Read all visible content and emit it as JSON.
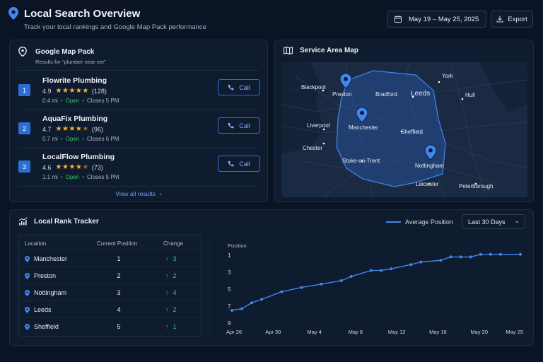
{
  "header": {
    "title": "Local Search Overview",
    "subtitle": "Track your local rankings and Google Map Pack performance",
    "date_range": "May 19 – May 25, 2025",
    "export_label": "Export"
  },
  "map_pack": {
    "title": "Google Map Pack",
    "subtitle": "Results for “plumber near me”",
    "call_label": "Call",
    "view_all_label": "View all results",
    "businesses": [
      {
        "rank": "1",
        "name": "Flowrite Plumbing",
        "rating": "4.9",
        "stars": 5,
        "reviews": "(128)",
        "distance": "0.4 mi",
        "status": "Open",
        "closes": "Closes 5 PM"
      },
      {
        "rank": "2",
        "name": "AquaFix Plumbing",
        "rating": "4.7",
        "stars": 4.5,
        "reviews": "(96)",
        "distance": "0.7 mi",
        "status": "Open",
        "closes": "Closes 6 PM"
      },
      {
        "rank": "3",
        "name": "LocalFlow Plumbing",
        "rating": "4.6",
        "stars": 4.5,
        "reviews": "(73)",
        "distance": "1.1 mi",
        "status": "Open",
        "closes": "Closes 5 PM"
      }
    ]
  },
  "service_map": {
    "title": "Service Area Map",
    "cities": [
      "York",
      "Blackpool",
      "Preston",
      "Bradford",
      "Leeds",
      "Hull",
      "Liverpool",
      "Manchester",
      "Sheffield",
      "Chester",
      "Stoke-on-Trent",
      "Nottingham",
      "Leicester",
      "Peterborough"
    ],
    "pinned_cities": [
      "Preston",
      "Manchester",
      "Nottingham"
    ]
  },
  "rank_tracker": {
    "title": "Local Rank Tracker",
    "legend_label": "Average Position",
    "period": "Last 30 Days",
    "columns": [
      "Location",
      "Current Position",
      "Change"
    ],
    "rows": [
      {
        "location": "Manchester",
        "position": "1",
        "change": "3"
      },
      {
        "location": "Preston",
        "position": "2",
        "change": "2"
      },
      {
        "location": "Nottingham",
        "position": "3",
        "change": "4"
      },
      {
        "location": "Leeds",
        "position": "4",
        "change": "2"
      },
      {
        "location": "Sheffield",
        "position": "5",
        "change": "1"
      }
    ]
  },
  "colors": {
    "accent": "#2b6fd6",
    "line": "#3f86ee",
    "positive": "#3fbf6f",
    "star": "#f2b233"
  },
  "chart_data": {
    "type": "line",
    "ylabel": "Position",
    "y_reversed": true,
    "ylim": [
      1,
      9
    ],
    "y_ticks": [
      1,
      3,
      5,
      7,
      9
    ],
    "x_ticks": [
      "Apr 26",
      "Apr 30",
      "May 4",
      "May 8",
      "May 12",
      "May 16",
      "May 20",
      "May 25"
    ],
    "series": [
      {
        "name": "Average Position",
        "x": [
          "2025-04-26",
          "2025-04-27",
          "2025-04-28",
          "2025-04-29",
          "2025-05-01",
          "2025-05-03",
          "2025-05-05",
          "2025-05-07",
          "2025-05-08",
          "2025-05-10",
          "2025-05-11",
          "2025-05-12",
          "2025-05-14",
          "2025-05-15",
          "2025-05-17",
          "2025-05-18",
          "2025-05-19",
          "2025-05-20",
          "2025-05-21",
          "2025-05-22",
          "2025-05-23",
          "2025-05-25"
        ],
        "values": [
          7.5,
          7.3,
          6.6,
          6.2,
          5.3,
          4.8,
          4.4,
          4.0,
          3.5,
          2.8,
          2.8,
          2.6,
          2.1,
          1.8,
          1.6,
          1.2,
          1.2,
          1.2,
          0.9,
          0.9,
          0.9,
          0.9
        ]
      }
    ]
  }
}
